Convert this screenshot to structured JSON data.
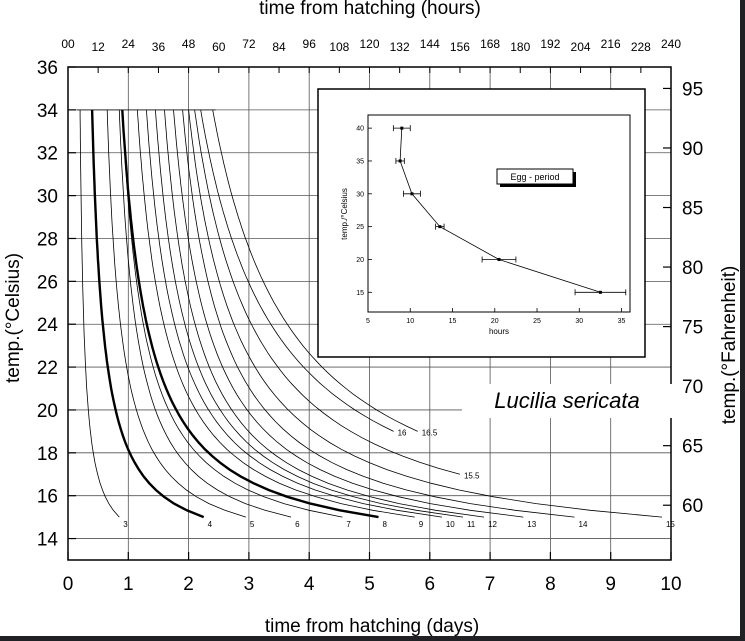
{
  "chart_data": [
    {
      "type": "line",
      "xlabel_bottom": "time from hatching (days)",
      "xlabel_top": "time from hatching (hours)",
      "ylabel_left": "temp.(°Celsius)",
      "ylabel_right": "temp.(°Fahrenheit)",
      "species_label": "Lucilia sericata",
      "xlim_days": [
        0,
        10
      ],
      "ylim_celsius": [
        13,
        36
      ],
      "x_ticks_days": [
        "0",
        "1",
        "2",
        "3",
        "4",
        "5",
        "6",
        "7",
        "8",
        "9",
        "10"
      ],
      "y_ticks_celsius": [
        "14",
        "16",
        "18",
        "20",
        "22",
        "24",
        "26",
        "28",
        "30",
        "32",
        "34",
        "36"
      ],
      "x_ticks_hours": [
        "00",
        "12",
        "24",
        "36",
        "48",
        "60",
        "72",
        "84",
        "96",
        "108",
        "120",
        "132",
        "144",
        "156",
        "168",
        "180",
        "192",
        "204",
        "216",
        "228",
        "240"
      ],
      "y_ticks_fahrenheit": [
        "60",
        "65",
        "70",
        "75",
        "80",
        "85",
        "90",
        "95"
      ],
      "grid": true,
      "series": [
        {
          "name": "3",
          "x_at_34": 0.2,
          "x_at_15": 0.85,
          "bold": false
        },
        {
          "name": "4",
          "x_at_34": 0.4,
          "x_at_15": 2.25,
          "bold": true
        },
        {
          "name": "5",
          "x_at_34": 0.65,
          "x_at_15": 2.95,
          "bold": false
        },
        {
          "name": "6",
          "x_at_34": 0.85,
          "x_at_15": 3.7,
          "bold": false
        },
        {
          "name": "7",
          "x_at_34": 0.9,
          "x_at_15": 4.55,
          "bold": false
        },
        {
          "name": "8",
          "x_at_34": 0.9,
          "x_at_15": 5.15,
          "bold": true
        },
        {
          "name": "9",
          "x_at_34": 1.15,
          "x_at_15": 5.75,
          "bold": false
        },
        {
          "name": "10",
          "x_at_34": 1.3,
          "x_at_15": 6.2,
          "bold": false
        },
        {
          "name": "11",
          "x_at_34": 1.45,
          "x_at_15": 6.55,
          "bold": false
        },
        {
          "name": "12",
          "x_at_34": 1.6,
          "x_at_15": 6.9,
          "bold": false
        },
        {
          "name": "13",
          "x_at_34": 1.75,
          "x_at_15": 7.55,
          "bold": false
        },
        {
          "name": "14",
          "x_at_34": 1.9,
          "x_at_15": 8.4,
          "bold": false
        },
        {
          "name": "15",
          "x_at_34": 2.0,
          "x_at_15": 9.85,
          "bold": false
        },
        {
          "name": "15.5",
          "x_at_34": 2.1,
          "x_at_17": 6.5,
          "bold": false
        },
        {
          "name": "16",
          "x_at_34": 2.2,
          "x_at_19": 5.4,
          "bold": false
        },
        {
          "name": "16.5",
          "x_at_34": 2.4,
          "x_at_19": 5.8,
          "bold": false
        }
      ]
    },
    {
      "type": "line",
      "legend": "Egg - period",
      "xlabel": "hours",
      "ylabel": "temp./°Celsius",
      "xlim": [
        5,
        36
      ],
      "ylim": [
        12,
        42
      ],
      "x_ticks": [
        "5",
        "10",
        "15",
        "20",
        "25",
        "30",
        "35"
      ],
      "y_ticks": [
        "15",
        "20",
        "25",
        "30",
        "35",
        "40"
      ],
      "x": [
        9,
        8.8,
        10.2,
        13.5,
        20.5,
        32.5
      ],
      "y": [
        40,
        35,
        30,
        25,
        20,
        15
      ],
      "x_err": [
        1,
        0.5,
        1,
        0.5,
        2,
        3
      ]
    }
  ]
}
